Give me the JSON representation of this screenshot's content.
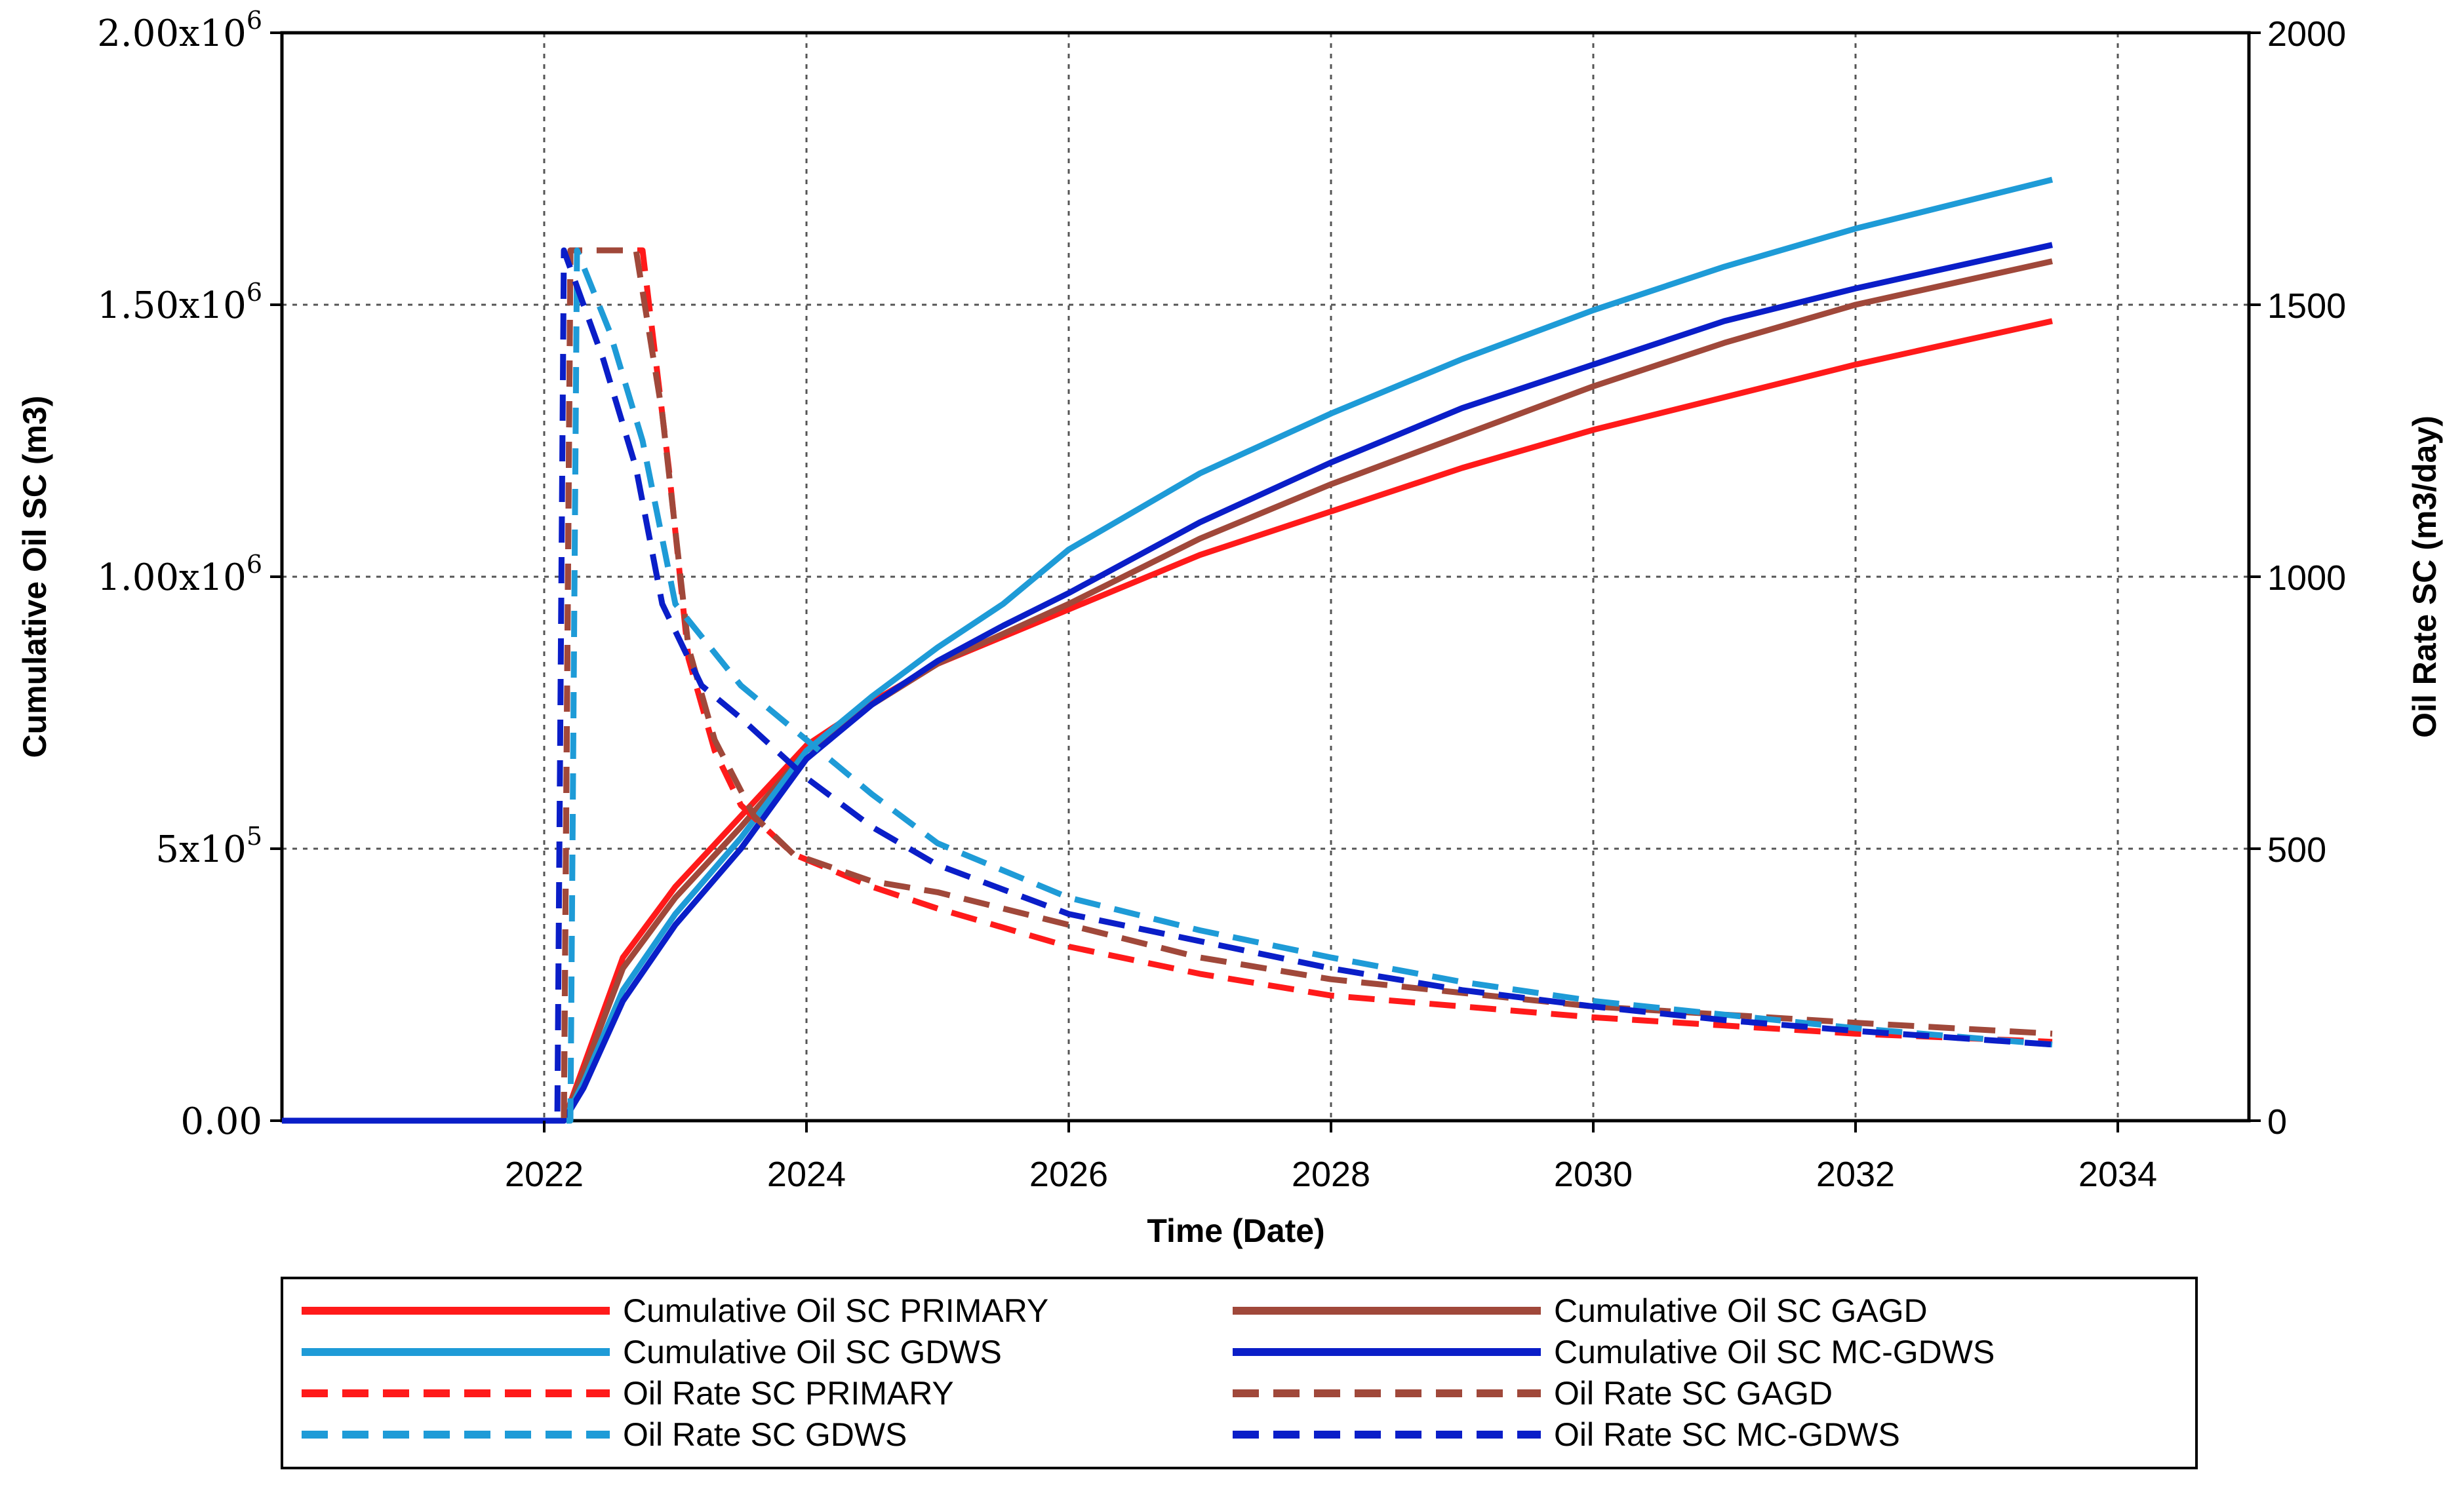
{
  "chart_data": {
    "type": "line",
    "xlabel": "Time (Date)",
    "ylabel_left": "Cumulative Oil SC (m3)",
    "ylabel_right": "Oil Rate SC (m3/day)",
    "xlim": [
      2020,
      2035
    ],
    "ylim_left": [
      0,
      2000000
    ],
    "ylim_right": [
      0,
      2000
    ],
    "grid": true,
    "legend_position": "bottom",
    "x_ticks": [
      {
        "value": 2022,
        "label": "2022"
      },
      {
        "value": 2024,
        "label": "2024"
      },
      {
        "value": 2026,
        "label": "2026"
      },
      {
        "value": 2028,
        "label": "2028"
      },
      {
        "value": 2030,
        "label": "2030"
      },
      {
        "value": 2032,
        "label": "2032"
      },
      {
        "value": 2034,
        "label": "2034"
      }
    ],
    "y_left_ticks": [
      {
        "value": 0,
        "label": "0.00",
        "sup": ""
      },
      {
        "value": 500000,
        "label": "5x10",
        "sup": "5"
      },
      {
        "value": 1000000,
        "label": "1.00x10",
        "sup": "6"
      },
      {
        "value": 1500000,
        "label": "1.50x10",
        "sup": "6"
      },
      {
        "value": 2000000,
        "label": "2.00x10",
        "sup": "6"
      }
    ],
    "y_right_ticks": [
      {
        "value": 0,
        "label": "0"
      },
      {
        "value": 500,
        "label": "500"
      },
      {
        "value": 1000,
        "label": "1000"
      },
      {
        "value": 1500,
        "label": "1500"
      },
      {
        "value": 2000,
        "label": "2000"
      }
    ],
    "series": [
      {
        "name": "Cumulative Oil SC PRIMARY",
        "axis": "left",
        "style": "solid",
        "color": "#ff1a1a",
        "legend_col": 0,
        "legend_row": 0,
        "points": [
          [
            2020,
            0
          ],
          [
            2022.15,
            0
          ],
          [
            2022.3,
            100000
          ],
          [
            2022.6,
            300000
          ],
          [
            2023.0,
            430000
          ],
          [
            2023.5,
            560000
          ],
          [
            2024.0,
            690000
          ],
          [
            2024.5,
            770000
          ],
          [
            2025.0,
            840000
          ],
          [
            2025.5,
            890000
          ],
          [
            2026.0,
            940000
          ],
          [
            2027.0,
            1040000
          ],
          [
            2028.0,
            1120000
          ],
          [
            2029.0,
            1200000
          ],
          [
            2030.0,
            1270000
          ],
          [
            2031.0,
            1330000
          ],
          [
            2032.0,
            1390000
          ],
          [
            2033.5,
            1470000
          ]
        ]
      },
      {
        "name": "Cumulative Oil SC GAGD",
        "axis": "left",
        "style": "solid",
        "color": "#a0483a",
        "legend_col": 1,
        "legend_row": 0,
        "points": [
          [
            2020,
            0
          ],
          [
            2022.15,
            0
          ],
          [
            2022.3,
            90000
          ],
          [
            2022.6,
            280000
          ],
          [
            2023.0,
            410000
          ],
          [
            2023.5,
            540000
          ],
          [
            2024.0,
            680000
          ],
          [
            2024.5,
            765000
          ],
          [
            2025.0,
            840000
          ],
          [
            2025.5,
            895000
          ],
          [
            2026.0,
            950000
          ],
          [
            2027.0,
            1070000
          ],
          [
            2028.0,
            1170000
          ],
          [
            2029.0,
            1260000
          ],
          [
            2030.0,
            1350000
          ],
          [
            2031.0,
            1430000
          ],
          [
            2032.0,
            1500000
          ],
          [
            2033.5,
            1580000
          ]
        ]
      },
      {
        "name": "Cumulative Oil SC GDWS",
        "axis": "left",
        "style": "solid",
        "color": "#1e9bd7",
        "legend_col": 0,
        "legend_row": 1,
        "points": [
          [
            2020,
            0
          ],
          [
            2022.15,
            0
          ],
          [
            2022.3,
            70000
          ],
          [
            2022.6,
            240000
          ],
          [
            2023.0,
            380000
          ],
          [
            2023.5,
            520000
          ],
          [
            2024.0,
            680000
          ],
          [
            2024.5,
            780000
          ],
          [
            2025.0,
            870000
          ],
          [
            2025.5,
            950000
          ],
          [
            2026.0,
            1050000
          ],
          [
            2027.0,
            1190000
          ],
          [
            2028.0,
            1300000
          ],
          [
            2029.0,
            1400000
          ],
          [
            2030.0,
            1490000
          ],
          [
            2031.0,
            1570000
          ],
          [
            2032.0,
            1640000
          ],
          [
            2033.5,
            1730000
          ]
        ]
      },
      {
        "name": "Cumulative Oil SC MC-GDWS",
        "axis": "left",
        "style": "solid",
        "color": "#0a1ec8",
        "legend_col": 1,
        "legend_row": 1,
        "points": [
          [
            2020,
            0
          ],
          [
            2022.15,
            0
          ],
          [
            2022.3,
            60000
          ],
          [
            2022.6,
            220000
          ],
          [
            2023.0,
            360000
          ],
          [
            2023.5,
            500000
          ],
          [
            2024.0,
            665000
          ],
          [
            2024.5,
            765000
          ],
          [
            2025.0,
            845000
          ],
          [
            2025.5,
            910000
          ],
          [
            2026.0,
            970000
          ],
          [
            2027.0,
            1100000
          ],
          [
            2028.0,
            1210000
          ],
          [
            2029.0,
            1310000
          ],
          [
            2030.0,
            1390000
          ],
          [
            2031.0,
            1470000
          ],
          [
            2032.0,
            1530000
          ],
          [
            2033.5,
            1610000
          ]
        ]
      },
      {
        "name": "Oil Rate SC PRIMARY",
        "axis": "right",
        "style": "dashed",
        "color": "#ff1a1a",
        "legend_col": 0,
        "legend_row": 2,
        "points": [
          [
            2020,
            0
          ],
          [
            2022.15,
            0
          ],
          [
            2022.2,
            1600
          ],
          [
            2022.75,
            1600
          ],
          [
            2022.95,
            1200
          ],
          [
            2023.1,
            850
          ],
          [
            2023.3,
            680
          ],
          [
            2023.5,
            580
          ],
          [
            2023.9,
            490
          ],
          [
            2024.5,
            430
          ],
          [
            2025.0,
            390
          ],
          [
            2026.0,
            320
          ],
          [
            2027.0,
            270
          ],
          [
            2028.0,
            230
          ],
          [
            2029.0,
            210
          ],
          [
            2030.0,
            190
          ],
          [
            2031.0,
            175
          ],
          [
            2032.0,
            160
          ],
          [
            2033.5,
            145
          ]
        ]
      },
      {
        "name": "Oil Rate SC GAGD",
        "axis": "right",
        "style": "dashed",
        "color": "#a0483a",
        "legend_col": 1,
        "legend_row": 2,
        "points": [
          [
            2020,
            0
          ],
          [
            2022.15,
            0
          ],
          [
            2022.2,
            1600
          ],
          [
            2022.7,
            1600
          ],
          [
            2022.9,
            1300
          ],
          [
            2023.1,
            870
          ],
          [
            2023.3,
            700
          ],
          [
            2023.6,
            560
          ],
          [
            2023.9,
            490
          ],
          [
            2024.5,
            440
          ],
          [
            2025.0,
            420
          ],
          [
            2026.0,
            360
          ],
          [
            2027.0,
            300
          ],
          [
            2028.0,
            260
          ],
          [
            2029.0,
            235
          ],
          [
            2030.0,
            210
          ],
          [
            2031.0,
            195
          ],
          [
            2032.0,
            180
          ],
          [
            2033.5,
            160
          ]
        ]
      },
      {
        "name": "Oil Rate SC GDWS",
        "axis": "right",
        "style": "dashed",
        "color": "#1e9bd7",
        "legend_col": 0,
        "legend_row": 3,
        "points": [
          [
            2020,
            0
          ],
          [
            2022.2,
            0
          ],
          [
            2022.25,
            1600
          ],
          [
            2022.5,
            1450
          ],
          [
            2022.75,
            1250
          ],
          [
            2023.0,
            950
          ],
          [
            2023.5,
            800
          ],
          [
            2024.0,
            700
          ],
          [
            2024.5,
            600
          ],
          [
            2025.0,
            510
          ],
          [
            2026.0,
            410
          ],
          [
            2027.0,
            350
          ],
          [
            2028.0,
            300
          ],
          [
            2029.0,
            255
          ],
          [
            2030.0,
            220
          ],
          [
            2031.0,
            195
          ],
          [
            2032.0,
            170
          ],
          [
            2033.5,
            140
          ]
        ]
      },
      {
        "name": "Oil Rate SC MC-GDWS",
        "axis": "right",
        "style": "dashed",
        "color": "#0a1ec8",
        "legend_col": 1,
        "legend_row": 3,
        "points": [
          [
            2020,
            0
          ],
          [
            2022.1,
            0
          ],
          [
            2022.15,
            1600
          ],
          [
            2022.45,
            1400
          ],
          [
            2022.7,
            1200
          ],
          [
            2022.9,
            950
          ],
          [
            2023.2,
            800
          ],
          [
            2023.5,
            740
          ],
          [
            2024.0,
            630
          ],
          [
            2024.5,
            540
          ],
          [
            2025.0,
            470
          ],
          [
            2026.0,
            380
          ],
          [
            2027.0,
            330
          ],
          [
            2028.0,
            280
          ],
          [
            2029.0,
            240
          ],
          [
            2030.0,
            210
          ],
          [
            2031.0,
            185
          ],
          [
            2032.0,
            165
          ],
          [
            2033.5,
            140
          ]
        ]
      }
    ]
  }
}
